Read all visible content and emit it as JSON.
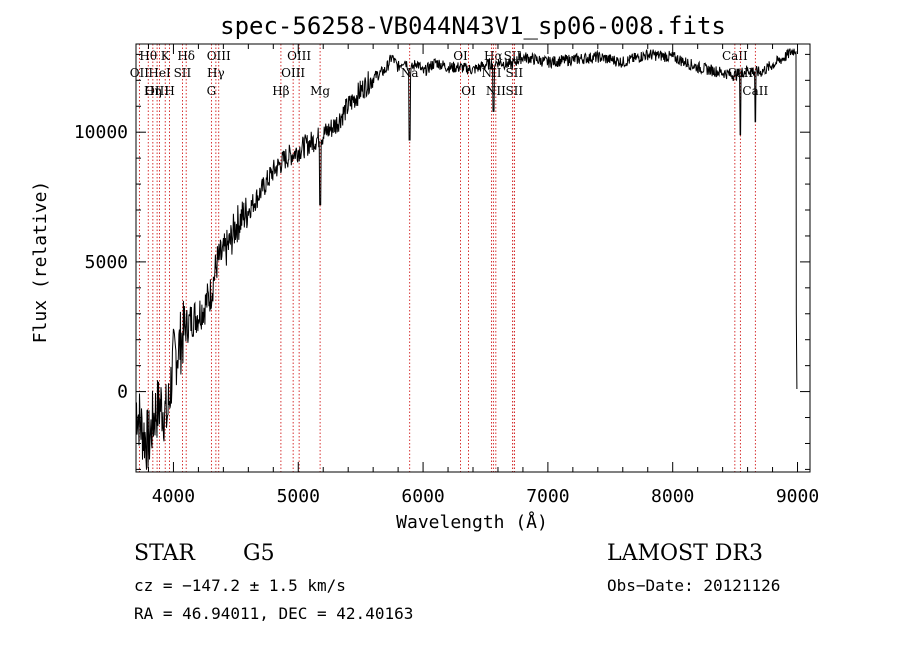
{
  "chart_data": {
    "type": "line",
    "title": "spec-56258-VB044N43V1_sp06-008.fits",
    "xlabel": "Wavelength (Å)",
    "ylabel": "Flux (relative)",
    "xlim": [
      3700,
      9100
    ],
    "ylim": [
      -3100,
      13400
    ],
    "xticks": [
      4000,
      5000,
      6000,
      7000,
      8000,
      9000
    ],
    "xtick_labels": [
      "4000",
      "5000",
      "6000",
      "7000",
      "8000",
      "9000"
    ],
    "yticks": [
      0,
      5000,
      10000
    ],
    "ytick_labels": [
      "0",
      "5000",
      "10000"
    ],
    "series": [
      {
        "name": "flux",
        "x": [
          3700,
          3750,
          3800,
          3850,
          3900,
          3950,
          4000,
          4050,
          4100,
          4150,
          4200,
          4250,
          4300,
          4350,
          4400,
          4450,
          4500,
          4600,
          4700,
          4800,
          4900,
          5000,
          5100,
          5200,
          5300,
          5400,
          5500,
          5600,
          5700,
          5750,
          5800,
          5850,
          5900,
          5950,
          6000,
          6100,
          6200,
          6300,
          6400,
          6500,
          6600,
          6700,
          6800,
          6900,
          7000,
          7200,
          7400,
          7600,
          7800,
          8000,
          8200,
          8400,
          8500,
          8600,
          8700,
          8800,
          8900,
          8950,
          8990
        ],
        "y": [
          -500,
          -1500,
          -2000,
          -800,
          -500,
          -1000,
          1200,
          1800,
          2500,
          2800,
          3000,
          3300,
          3800,
          5000,
          5300,
          5700,
          6400,
          7000,
          7700,
          8500,
          9000,
          9300,
          9600,
          9900,
          10300,
          11000,
          11600,
          12100,
          12400,
          12900,
          12500,
          12800,
          12400,
          12700,
          12300,
          12700,
          12500,
          12500,
          12400,
          12600,
          12700,
          12600,
          12900,
          12800,
          12700,
          12800,
          12900,
          12700,
          13000,
          12900,
          12500,
          12300,
          12200,
          12400,
          12300,
          12600,
          12900,
          13100,
          13200
        ]
      }
    ],
    "spectral_lines": [
      {
        "label": "Hθ",
        "wavelength": 3798,
        "row": 0
      },
      {
        "label": "OII",
        "wavelength": 3727,
        "row": 1
      },
      {
        "label": "OIII",
        "wavelength": 3869,
        "row": 2
      },
      {
        "label": "K",
        "wavelength": 3934,
        "row": 0
      },
      {
        "label": "HeI",
        "wavelength": 3889,
        "row": 1
      },
      {
        "label": "Hη",
        "wavelength": 3835,
        "row": 2
      },
      {
        "label": "SII",
        "wavelength": 4072,
        "row": 1
      },
      {
        "label": "H",
        "wavelength": 3969,
        "row": 2
      },
      {
        "label": "Hδ",
        "wavelength": 4102,
        "row": 0
      },
      {
        "label": "OIII",
        "wavelength": 4363,
        "row": 0
      },
      {
        "label": "Hγ",
        "wavelength": 4340,
        "row": 1
      },
      {
        "label": "G",
        "wavelength": 4304,
        "row": 2
      },
      {
        "label": "Hβ",
        "wavelength": 4861,
        "row": 2
      },
      {
        "label": "OIII",
        "wavelength": 5007,
        "row": 0
      },
      {
        "label": "OIII",
        "wavelength": 4959,
        "row": 1
      },
      {
        "label": "Mg",
        "wavelength": 5175,
        "row": 2
      },
      {
        "label": "Na",
        "wavelength": 5893,
        "row": 1
      },
      {
        "label": "OI",
        "wavelength": 6300,
        "row": 0
      },
      {
        "label": "OI",
        "wavelength": 6364,
        "row": 2
      },
      {
        "label": "Hα",
        "wavelength": 6563,
        "row": 0
      },
      {
        "label": "NII",
        "wavelength": 6548,
        "row": 1
      },
      {
        "label": "NII",
        "wavelength": 6583,
        "row": 2
      },
      {
        "label": "SII",
        "wavelength": 6716,
        "row": 0
      },
      {
        "label": "SII",
        "wavelength": 6731,
        "row": 1
      },
      {
        "label": "SII",
        "wavelength": 6731,
        "row": 2
      },
      {
        "label": "CaII",
        "wavelength": 8498,
        "row": 0
      },
      {
        "label": "CaII",
        "wavelength": 8542,
        "row": 1
      },
      {
        "label": "CaII",
        "wavelength": 8662,
        "row": 2
      }
    ],
    "absorption_features": [
      {
        "wavelength": 5893,
        "depth": 9700
      },
      {
        "wavelength": 5175,
        "depth": 7200
      },
      {
        "wavelength": 6563,
        "depth": 10800
      },
      {
        "wavelength": 8542,
        "depth": 9900
      },
      {
        "wavelength": 8662,
        "depth": 10400
      }
    ]
  },
  "info": {
    "class": "STAR",
    "subclass": "G5",
    "survey": "LAMOST DR3",
    "redshift": "cz = −147.2 ± 1.5 km/s",
    "obs_date": "Obs−Date: 20121126",
    "coords": "RA =  46.94011, DEC =  42.40163"
  },
  "colors": {
    "line": "#000000",
    "marker": "#cc0000",
    "axis": "#000000"
  }
}
